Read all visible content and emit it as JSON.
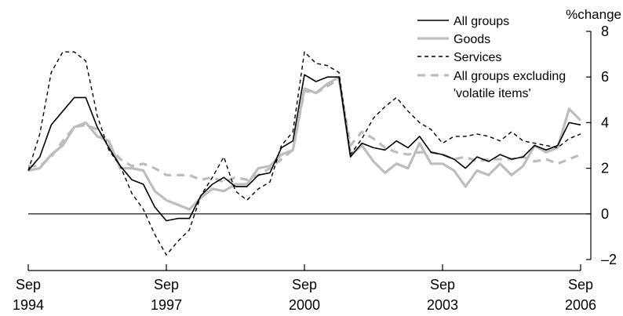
{
  "chart_data": {
    "type": "line",
    "y_unit_label": "%change",
    "ylim": [
      -2,
      8
    ],
    "y_ticks": [
      8,
      6,
      4,
      2,
      0,
      -2
    ],
    "y_tick_labels": [
      "8",
      "6",
      "4",
      "2",
      "0",
      "–2"
    ],
    "x_ticks": [
      {
        "month": "Sep",
        "year": "1994"
      },
      {
        "month": "Sep",
        "year": "1997"
      },
      {
        "month": "Sep",
        "year": "2000"
      },
      {
        "month": "Sep",
        "year": "2003"
      },
      {
        "month": "Sep",
        "year": "2006"
      }
    ],
    "x_note": "quarterly observations, Sep 1994 to Sep 2006",
    "zero_line": true,
    "grid": false,
    "legend_position": "top-right",
    "series": [
      {
        "name": "All groups",
        "style": "solid",
        "color": "#000000",
        "values": [
          1.9,
          2.5,
          3.9,
          4.5,
          5.1,
          5.1,
          3.8,
          2.9,
          2.1,
          1.5,
          1.3,
          0.3,
          -0.3,
          -0.2,
          -0.2,
          0.8,
          1.3,
          1.6,
          1.2,
          1.2,
          1.7,
          1.8,
          2.9,
          3.2,
          6.1,
          5.8,
          6.0,
          6.0,
          2.5,
          3.1,
          2.9,
          2.8,
          3.2,
          2.9,
          3.4,
          2.7,
          2.6,
          2.4,
          2.0,
          2.5,
          2.3,
          2.6,
          2.4,
          2.5,
          3.0,
          2.8,
          3.0,
          4.0,
          3.9
        ]
      },
      {
        "name": "Goods",
        "style": "solid-thick",
        "color": "#bdbdbd",
        "values": [
          1.9,
          2.0,
          2.6,
          3.0,
          3.8,
          4.0,
          3.4,
          3.2,
          2.0,
          2.0,
          1.9,
          1.0,
          0.6,
          0.4,
          0.2,
          0.7,
          1.1,
          1.0,
          1.3,
          1.3,
          2.0,
          2.1,
          2.6,
          2.8,
          5.5,
          5.3,
          5.7,
          6.0,
          2.6,
          3.0,
          2.3,
          1.8,
          2.2,
          2.0,
          3.1,
          2.2,
          2.2,
          1.9,
          1.2,
          1.9,
          1.7,
          2.2,
          1.7,
          2.1,
          3.0,
          2.7,
          2.9,
          4.6,
          4.1
        ]
      },
      {
        "name": "Services",
        "style": "dashed",
        "color": "#000000",
        "values": [
          1.9,
          3.5,
          6.2,
          7.1,
          7.1,
          6.7,
          4.3,
          2.8,
          2.1,
          0.9,
          0.2,
          -0.9,
          -1.8,
          -1.2,
          -0.7,
          0.8,
          1.6,
          2.5,
          1.0,
          0.6,
          1.1,
          1.4,
          3.0,
          3.6,
          7.1,
          6.6,
          6.5,
          6.2,
          2.6,
          3.3,
          4.2,
          4.7,
          5.1,
          4.5,
          4.0,
          3.7,
          3.1,
          3.4,
          3.4,
          3.5,
          3.4,
          3.2,
          3.6,
          3.2,
          3.1,
          3.0,
          2.9,
          3.3,
          3.5
        ]
      },
      {
        "name": "All groups excluding 'volatile items'",
        "legend_lines": [
          "All groups excluding",
          "'volatile items'"
        ],
        "style": "dashed-thick",
        "color": "#bdbdbd",
        "values": [
          2.1,
          2.1,
          2.5,
          3.2,
          3.8,
          3.9,
          3.7,
          3.0,
          2.4,
          2.1,
          2.2,
          2.0,
          1.7,
          1.7,
          1.7,
          1.5,
          1.6,
          1.4,
          1.6,
          1.5,
          1.7,
          2.0,
          2.4,
          2.8,
          5.4,
          5.3,
          5.6,
          5.9,
          3.0,
          3.6,
          3.3,
          2.9,
          2.7,
          2.6,
          2.7,
          2.7,
          2.6,
          2.4,
          2.5,
          2.3,
          2.4,
          2.4,
          2.4,
          2.5,
          2.3,
          2.4,
          2.2,
          2.4,
          2.6
        ]
      }
    ]
  }
}
